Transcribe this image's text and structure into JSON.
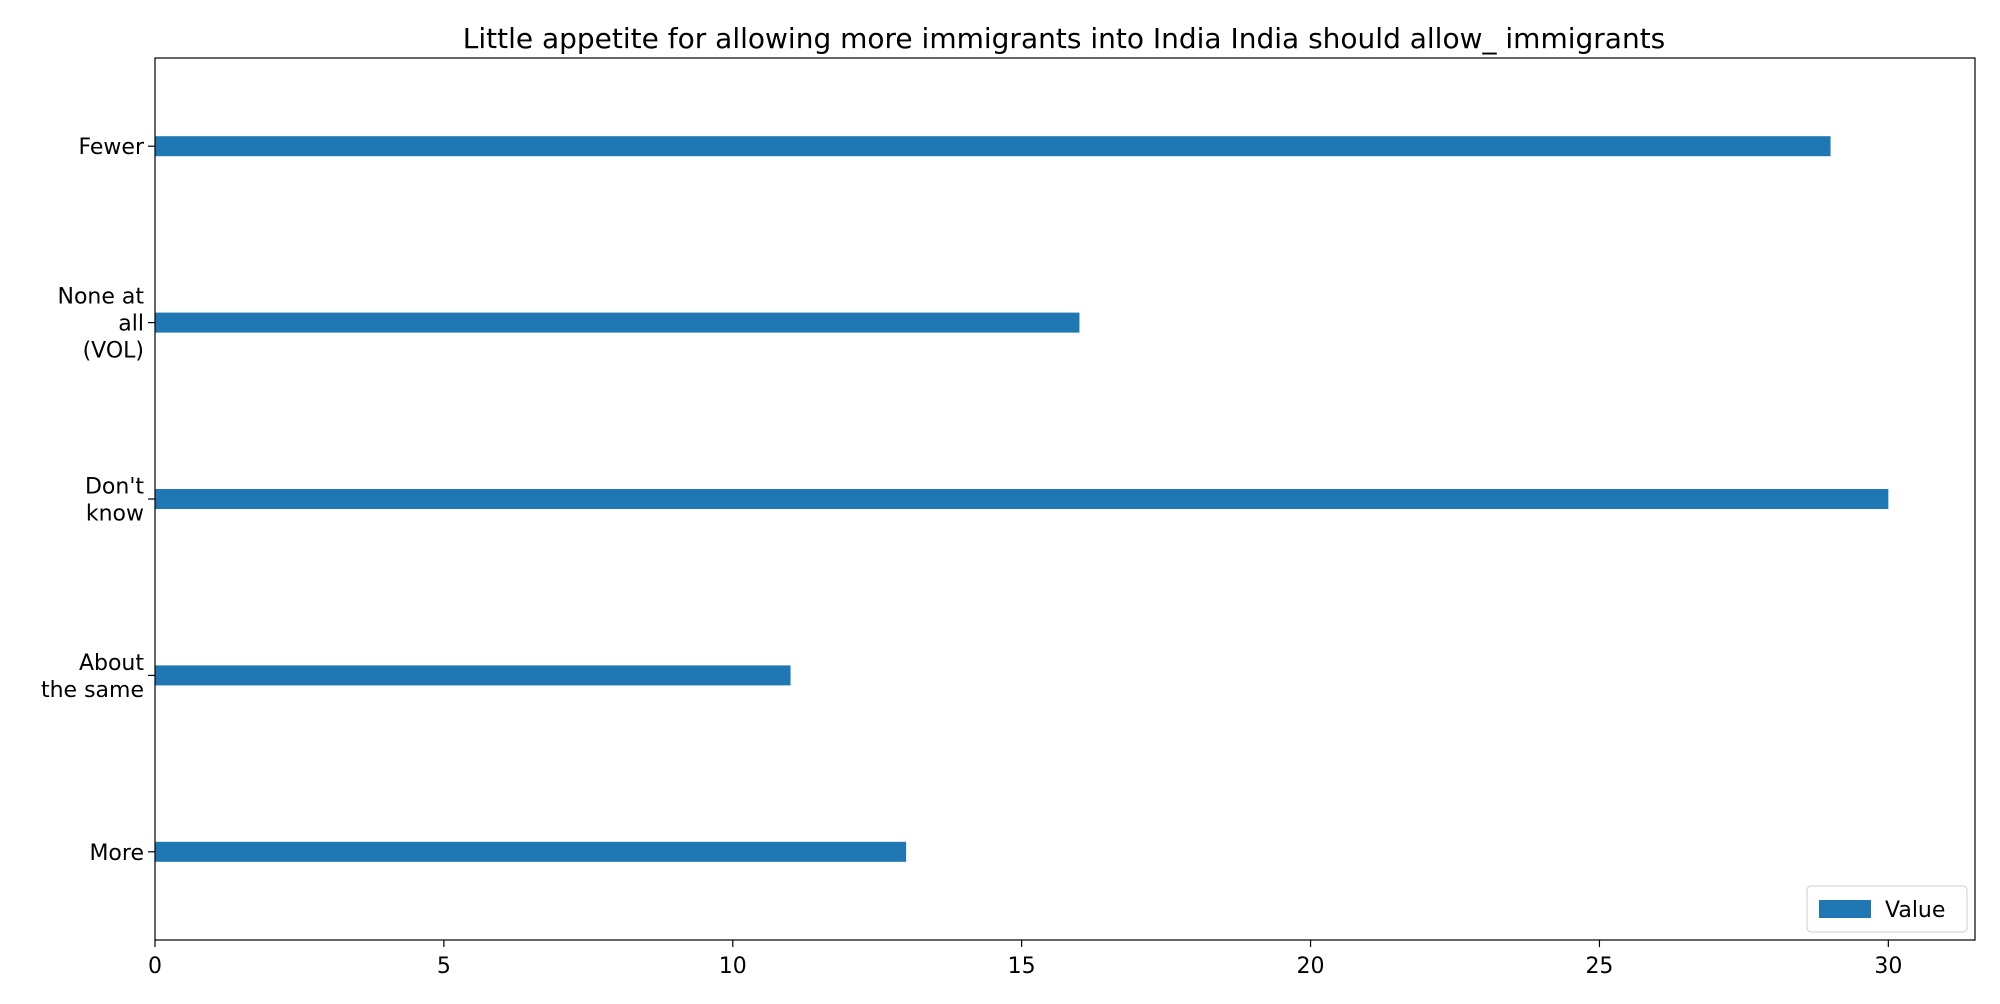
{
  "chart_data": {
    "type": "bar",
    "orientation": "horizontal",
    "title": "Little appetite for allowing more immigrants into India India should allow_ immigrants",
    "xlabel": "",
    "ylabel": "",
    "categories": [
      [
        "More"
      ],
      [
        "About",
        "the same"
      ],
      [
        "Don't",
        "know"
      ],
      [
        "None at",
        "all",
        "(VOL)"
      ],
      [
        "Fewer"
      ]
    ],
    "series": [
      {
        "name": "Value",
        "values": [
          13,
          11,
          30,
          16,
          29
        ],
        "color": "#1f77b4"
      }
    ],
    "xlim": [
      0,
      31.5
    ],
    "xticks": [
      0,
      5,
      10,
      15,
      20,
      25,
      30
    ],
    "grid": false,
    "legend_position": "bottom-right"
  }
}
